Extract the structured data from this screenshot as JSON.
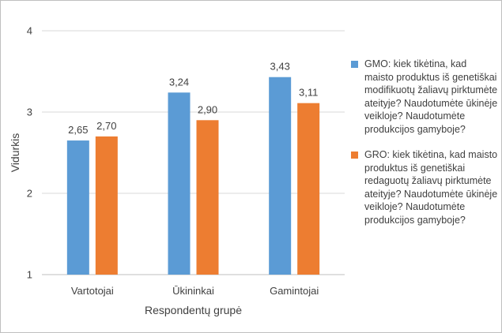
{
  "chart_data": {
    "type": "bar",
    "title": "",
    "xlabel": "Respondentų grupė",
    "ylabel": "Vidurkis",
    "ylim": [
      1,
      4
    ],
    "yticks": [
      "1",
      "2",
      "3",
      "4"
    ],
    "grid": true,
    "legend_position": "right",
    "categories": [
      "Vartotojai",
      "Ūkininkai",
      "Gamintojai"
    ],
    "series": [
      {
        "name": "GMO: kiek tikėtina, kad maisto produktus iš genetiškai modifikuotų žaliavų pirktumėte ateityje? Naudotumėte ūkinėje veikloje? Naudotumėte produkcijos gamyboje?",
        "color": "#5b9bd5",
        "values": [
          2.65,
          3.24,
          3.43
        ],
        "labels": [
          "2,65",
          "3,24",
          "3,43"
        ]
      },
      {
        "name": "GRO: kiek tikėtina, kad maisto produktus iš genetiškai redaguotų žaliavų pirktumėte ateityje? Naudotumėte ūkinėje veikloje? Naudotumėte produkcijos gamyboje?",
        "color": "#ed7d31",
        "values": [
          2.7,
          2.9,
          3.11
        ],
        "labels": [
          "2,70",
          "2,90",
          "3,11"
        ]
      }
    ]
  }
}
